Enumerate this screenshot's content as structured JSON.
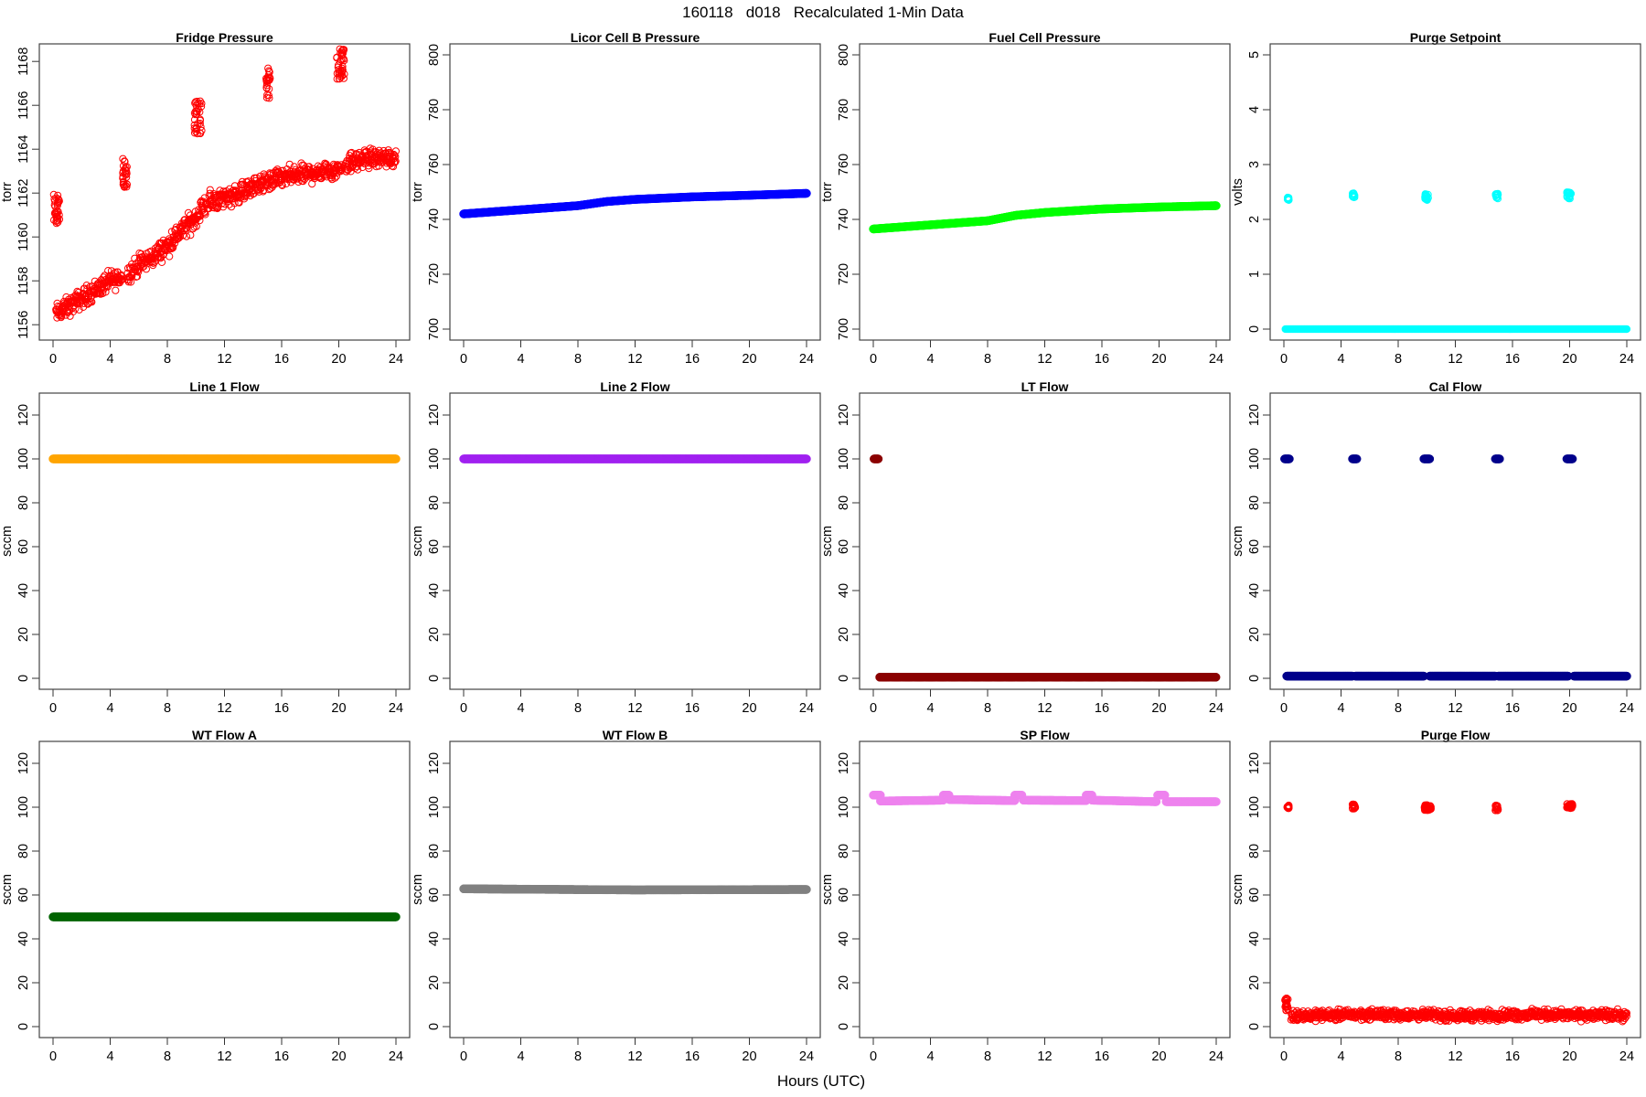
{
  "title": "160118   d018   Recalculated 1-Min Data",
  "xlabel": "Hours (UTC)",
  "chart_data": [
    {
      "type": "scatter",
      "title": "Fridge Pressure",
      "ylabel": "torr",
      "color": "#ff0000",
      "marker": "open-circle",
      "xlim": [
        0,
        24
      ],
      "xticks": [
        0,
        4,
        8,
        12,
        16,
        20,
        24
      ],
      "ylim": [
        1155.3,
        1168.8
      ],
      "yticks": [
        1156,
        1158,
        1160,
        1162,
        1164,
        1166,
        1168
      ],
      "trend": [
        [
          0.2,
          1156.5
        ],
        [
          1,
          1156.8
        ],
        [
          2,
          1157.2
        ],
        [
          3,
          1157.6
        ],
        [
          4,
          1158.0
        ],
        [
          4.9,
          1158.2
        ],
        [
          5.2,
          1158.3
        ],
        [
          6,
          1158.7
        ],
        [
          7,
          1159.1
        ],
        [
          8,
          1159.6
        ],
        [
          9,
          1160.3
        ],
        [
          9.9,
          1160.8
        ],
        [
          10.4,
          1161.3
        ],
        [
          11,
          1161.6
        ],
        [
          12,
          1161.8
        ],
        [
          13,
          1162.0
        ],
        [
          14,
          1162.3
        ],
        [
          15,
          1162.5
        ],
        [
          16,
          1162.7
        ],
        [
          18,
          1162.9
        ],
        [
          20,
          1163.1
        ],
        [
          20.4,
          1163.3
        ],
        [
          22,
          1163.6
        ],
        [
          24,
          1163.6
        ]
      ],
      "spread": 0.5,
      "clusters": [
        {
          "x": [
            0.05,
            0.5
          ],
          "y": [
            1160.6,
            1162.0
          ]
        },
        {
          "x": [
            4.85,
            5.2
          ],
          "y": [
            1162.2,
            1163.6
          ]
        },
        {
          "x": [
            9.9,
            10.4
          ],
          "y": [
            1164.7,
            1166.2
          ]
        },
        {
          "x": [
            14.9,
            15.2
          ],
          "y": [
            1166.3,
            1167.7
          ]
        },
        {
          "x": [
            19.85,
            20.4
          ],
          "y": [
            1167.2,
            1168.6
          ]
        }
      ]
    },
    {
      "type": "scatter",
      "title": "Licor Cell B Pressure",
      "ylabel": "torr",
      "color": "#0000ff",
      "marker": "filled-circle",
      "xlim": [
        0,
        24
      ],
      "xticks": [
        0,
        4,
        8,
        12,
        16,
        20,
        24
      ],
      "ylim": [
        696,
        804
      ],
      "yticks": [
        700,
        720,
        740,
        760,
        780,
        800
      ],
      "segments": [
        [
          [
            0,
            742
          ],
          [
            4,
            743.5
          ],
          [
            8,
            745
          ],
          [
            10,
            746.5
          ],
          [
            12,
            747.3
          ],
          [
            16,
            748.2
          ],
          [
            20,
            748.8
          ],
          [
            24,
            749.5
          ]
        ]
      ]
    },
    {
      "type": "scatter",
      "title": "Fuel Cell Pressure",
      "ylabel": "torr",
      "color": "#00ff00",
      "marker": "filled-circle",
      "xlim": [
        0,
        24
      ],
      "xticks": [
        0,
        4,
        8,
        12,
        16,
        20,
        24
      ],
      "ylim": [
        696,
        804
      ],
      "yticks": [
        700,
        720,
        740,
        760,
        780,
        800
      ],
      "segments": [
        [
          [
            0,
            736.5
          ],
          [
            4,
            738
          ],
          [
            8,
            739.5
          ],
          [
            10,
            741.5
          ],
          [
            12,
            742.5
          ],
          [
            16,
            743.8
          ],
          [
            20,
            744.5
          ],
          [
            24,
            745
          ]
        ]
      ]
    },
    {
      "type": "scatter",
      "title": "Purge Setpoint",
      "ylabel": "volts",
      "color": "#00ffff",
      "marker": "open-circle",
      "xlim": [
        0,
        24
      ],
      "xticks": [
        0,
        4,
        8,
        12,
        16,
        20,
        24
      ],
      "ylim": [
        -0.2,
        5.2
      ],
      "yticks": [
        0,
        1,
        2,
        3,
        4,
        5
      ],
      "segments": [
        [
          [
            0.1,
            0
          ],
          [
            24,
            0
          ]
        ]
      ],
      "clusters": [
        {
          "x": [
            0.25,
            0.35
          ],
          "y": [
            2.35,
            2.4
          ]
        },
        {
          "x": [
            4.8,
            4.95
          ],
          "y": [
            2.4,
            2.48
          ]
        },
        {
          "x": [
            9.85,
            10.1
          ],
          "y": [
            2.35,
            2.47
          ]
        },
        {
          "x": [
            14.8,
            15.0
          ],
          "y": [
            2.38,
            2.47
          ]
        },
        {
          "x": [
            19.8,
            20.1
          ],
          "y": [
            2.38,
            2.5
          ]
        }
      ]
    },
    {
      "type": "scatter",
      "title": "Line 1 Flow",
      "ylabel": "sccm",
      "color": "#ffa500",
      "marker": "filled-circle",
      "xlim": [
        0,
        24
      ],
      "xticks": [
        0,
        4,
        8,
        12,
        16,
        20,
        24
      ],
      "ylim": [
        -5,
        130
      ],
      "yticks": [
        0,
        20,
        40,
        60,
        80,
        100,
        120
      ],
      "segments": [
        [
          [
            0,
            100
          ],
          [
            24,
            100
          ]
        ]
      ]
    },
    {
      "type": "scatter",
      "title": "Line 2 Flow",
      "ylabel": "sccm",
      "color": "#a020f0",
      "marker": "filled-circle",
      "xlim": [
        0,
        24
      ],
      "xticks": [
        0,
        4,
        8,
        12,
        16,
        20,
        24
      ],
      "ylim": [
        -5,
        130
      ],
      "yticks": [
        0,
        20,
        40,
        60,
        80,
        100,
        120
      ],
      "segments": [
        [
          [
            0,
            100
          ],
          [
            24,
            100
          ]
        ]
      ]
    },
    {
      "type": "scatter",
      "title": "LT Flow",
      "ylabel": "sccm",
      "color": "#8b0000",
      "marker": "filled-circle",
      "xlim": [
        0,
        24
      ],
      "xticks": [
        0,
        4,
        8,
        12,
        16,
        20,
        24
      ],
      "ylim": [
        -5,
        130
      ],
      "yticks": [
        0,
        20,
        40,
        60,
        80,
        100,
        120
      ],
      "segments": [
        [
          [
            0.05,
            100
          ],
          [
            0.35,
            100
          ]
        ],
        [
          [
            0.45,
            0.5
          ],
          [
            24,
            0.5
          ]
        ]
      ]
    },
    {
      "type": "scatter",
      "title": "Cal Flow",
      "ylabel": "sccm",
      "color": "#00008b",
      "marker": "filled-circle",
      "xlim": [
        0,
        24
      ],
      "xticks": [
        0,
        4,
        8,
        12,
        16,
        20,
        24
      ],
      "ylim": [
        -5,
        130
      ],
      "yticks": [
        0,
        20,
        40,
        60,
        80,
        100,
        120
      ],
      "segments": [
        [
          [
            0.05,
            100
          ],
          [
            0.4,
            100
          ]
        ],
        [
          [
            4.8,
            100
          ],
          [
            5.1,
            100
          ]
        ],
        [
          [
            9.8,
            100
          ],
          [
            10.2,
            100
          ]
        ],
        [
          [
            14.8,
            100
          ],
          [
            15.1,
            100
          ]
        ],
        [
          [
            19.8,
            100
          ],
          [
            20.2,
            100
          ]
        ],
        [
          [
            0.2,
            1
          ],
          [
            4.8,
            1
          ]
        ],
        [
          [
            5.0,
            1
          ],
          [
            9.8,
            1
          ]
        ],
        [
          [
            10.2,
            1
          ],
          [
            14.8,
            1
          ]
        ],
        [
          [
            15.0,
            1
          ],
          [
            19.9,
            1
          ]
        ],
        [
          [
            20.3,
            1
          ],
          [
            24,
            1
          ]
        ]
      ]
    },
    {
      "type": "scatter",
      "title": "WT Flow A",
      "ylabel": "sccm",
      "color": "#006400",
      "marker": "filled-circle",
      "xlim": [
        0,
        24
      ],
      "xticks": [
        0,
        4,
        8,
        12,
        16,
        20,
        24
      ],
      "ylim": [
        -5,
        130
      ],
      "yticks": [
        0,
        20,
        40,
        60,
        80,
        100,
        120
      ],
      "segments": [
        [
          [
            0,
            50
          ],
          [
            24,
            50
          ]
        ]
      ]
    },
    {
      "type": "scatter",
      "title": "WT Flow B",
      "ylabel": "sccm",
      "color": "#808080",
      "marker": "filled-circle",
      "xlim": [
        0,
        24
      ],
      "xticks": [
        0,
        4,
        8,
        12,
        16,
        20,
        24
      ],
      "ylim": [
        -5,
        130
      ],
      "yticks": [
        0,
        20,
        40,
        60,
        80,
        100,
        120
      ],
      "segments": [
        [
          [
            0,
            62.8
          ],
          [
            12,
            62.3
          ],
          [
            24,
            62.5
          ]
        ]
      ]
    },
    {
      "type": "scatter",
      "title": "SP Flow",
      "ylabel": "sccm",
      "color": "#ee82ee",
      "marker": "filled-circle",
      "xlim": [
        0,
        24
      ],
      "xticks": [
        0,
        4,
        8,
        12,
        16,
        20,
        24
      ],
      "ylim": [
        -5,
        130
      ],
      "yticks": [
        0,
        20,
        40,
        60,
        80,
        100,
        120
      ],
      "segments": [
        [
          [
            0,
            105.5
          ],
          [
            0.5,
            105.5
          ]
        ],
        [
          [
            0.5,
            102.8
          ],
          [
            4.9,
            103.2
          ]
        ],
        [
          [
            4.9,
            105.5
          ],
          [
            5.3,
            105.5
          ]
        ],
        [
          [
            5.3,
            103.5
          ],
          [
            9.9,
            103
          ]
        ],
        [
          [
            9.9,
            105.5
          ],
          [
            10.4,
            105.5
          ]
        ],
        [
          [
            10.5,
            103.2
          ],
          [
            14.9,
            103
          ]
        ],
        [
          [
            14.9,
            105.5
          ],
          [
            15.3,
            105.5
          ]
        ],
        [
          [
            15.3,
            103.2
          ],
          [
            19.8,
            102.5
          ]
        ],
        [
          [
            19.9,
            105.5
          ],
          [
            20.4,
            105.5
          ]
        ],
        [
          [
            20.5,
            102.5
          ],
          [
            24,
            102.5
          ]
        ]
      ]
    },
    {
      "type": "scatter",
      "title": "Purge Flow",
      "ylabel": "sccm",
      "color": "#ff0000",
      "marker": "open-circle",
      "xlim": [
        0,
        24
      ],
      "xticks": [
        0,
        4,
        8,
        12,
        16,
        20,
        24
      ],
      "ylim": [
        -5,
        130
      ],
      "yticks": [
        0,
        20,
        40,
        60,
        80,
        100,
        120
      ],
      "trend": [
        [
          0.5,
          5
        ],
        [
          6,
          5.5
        ],
        [
          12,
          5
        ],
        [
          18,
          5.5
        ],
        [
          24,
          5
        ]
      ],
      "spread": 2.5,
      "clusters": [
        {
          "x": [
            0.05,
            0.3
          ],
          "y": [
            7,
            13
          ]
        },
        {
          "x": [
            0.2,
            0.35
          ],
          "y": [
            99.5,
            101
          ]
        },
        {
          "x": [
            4.8,
            5.0
          ],
          "y": [
            99,
            101.5
          ]
        },
        {
          "x": [
            9.8,
            10.3
          ],
          "y": [
            98.5,
            101
          ]
        },
        {
          "x": [
            14.8,
            15.0
          ],
          "y": [
            98.5,
            101
          ]
        },
        {
          "x": [
            19.8,
            20.2
          ],
          "y": [
            99.5,
            101.5
          ]
        }
      ]
    }
  ]
}
